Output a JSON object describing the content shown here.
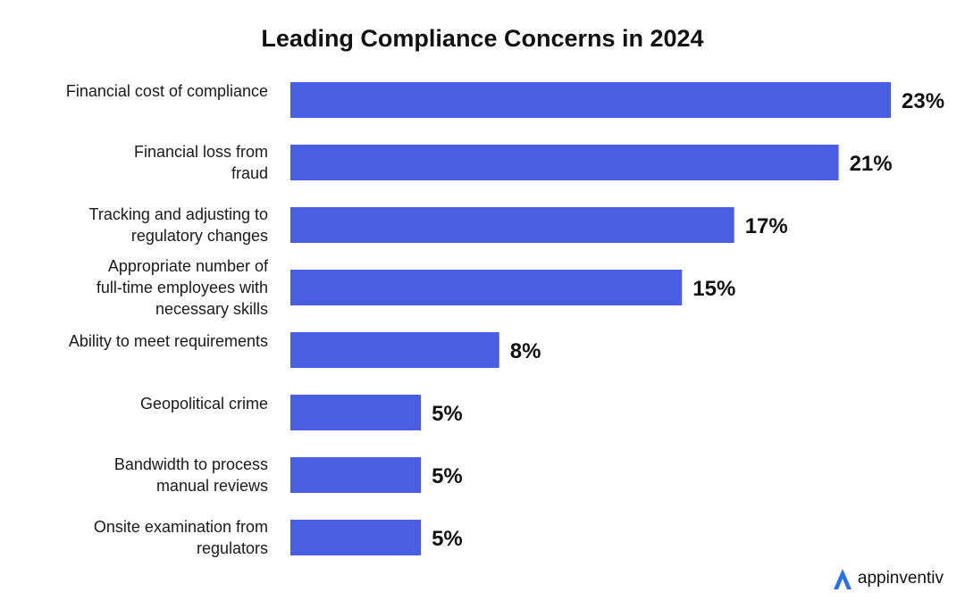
{
  "chart_data": {
    "type": "bar",
    "orientation": "horizontal",
    "title": "Leading Compliance Concerns in 2024",
    "categories": [
      "Financial cost of compliance",
      "Financial loss from fraud",
      "Tracking and adjusting to regulatory changes",
      "Appropriate number of full-time employees with necessary skills",
      "Ability to meet requirements",
      "Geopolitical crime",
      "Bandwidth to process manual reviews",
      "Onsite examination from regulators"
    ],
    "category_lines": [
      [
        "Financial cost of compliance"
      ],
      [
        "Financial loss from",
        "fraud"
      ],
      [
        "Tracking and adjusting to",
        "regulatory changes"
      ],
      [
        "Appropriate number of",
        "full-time employees with",
        "necessary skills"
      ],
      [
        "Ability to meet requirements"
      ],
      [
        "Geopolitical crime"
      ],
      [
        "Bandwidth to process",
        "manual reviews"
      ],
      [
        "Onsite examination from",
        "regulators"
      ]
    ],
    "values": [
      23,
      21,
      17,
      15,
      8,
      5,
      5,
      5
    ],
    "value_labels": [
      "23%",
      "21%",
      "17%",
      "15%",
      "8%",
      "5%",
      "5%",
      "5%"
    ],
    "unit": "%",
    "bar_color": "#4a5ee4",
    "grid": false,
    "legend": "none"
  },
  "brand": {
    "name": "appinventiv",
    "logo_color": "#2b6ef2"
  }
}
